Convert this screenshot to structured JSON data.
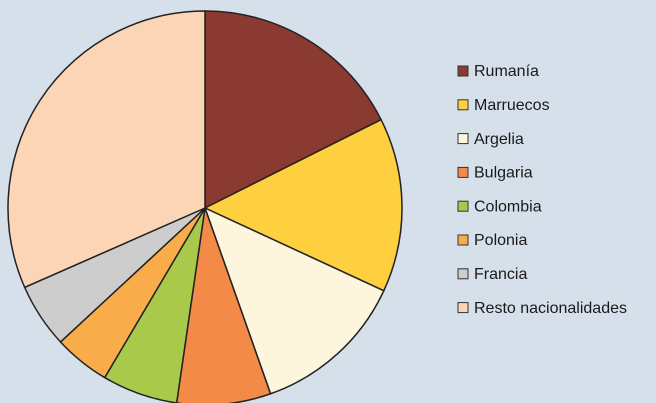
{
  "chart_data": {
    "type": "pie",
    "categories": [
      "Rumanía",
      "Marruecos",
      "Argelia",
      "Bulgaria",
      "Colombia",
      "Polonia",
      "Francia",
      "Resto nacionalidades"
    ],
    "values": [
      17.6,
      14.3,
      12.7,
      7.7,
      6.2,
      4.6,
      5.3,
      31.6
    ],
    "colors": [
      "#8b3a32",
      "#fecf3f",
      "#fdf5dc",
      "#f38a48",
      "#a9c94a",
      "#f9ad4a",
      "#cdcdcd",
      "#fbd5b5"
    ],
    "legend": "right"
  }
}
